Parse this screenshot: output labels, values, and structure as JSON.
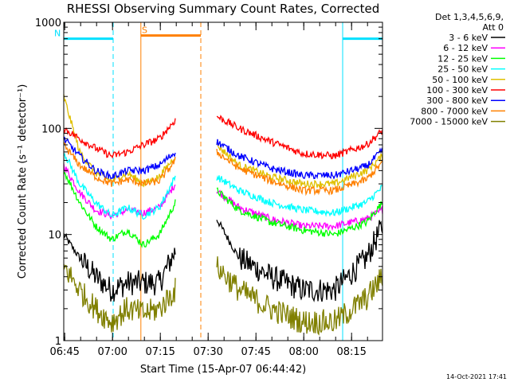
{
  "chart_data": {
    "type": "line",
    "title": "RHESSI Observing Summary Count Rates, Corrected",
    "xlabel": "Start Time (15-Apr-07 06:44:42)",
    "ylabel": "Corrected Count Rate (s⁻¹ detector⁻¹)",
    "yscale": "log",
    "ylim": [
      1,
      1000
    ],
    "xlim_minutes": [
      0,
      100
    ],
    "x_ticks": [
      "06:45",
      "07:00",
      "07:15",
      "07:30",
      "07:45",
      "08:00",
      "08:15"
    ],
    "y_ticks": [
      "1",
      "10",
      "100",
      "1000"
    ],
    "legend_header": [
      "Det 1,3,4,5,6,9,",
      "Att 0"
    ],
    "legend_placement": "right",
    "timestamp": "14-Oct-2021 17:41",
    "data_gap_minutes": [
      18.5,
      22.5
    ],
    "intervals": [
      {
        "label": "N",
        "color": "#00e0ff",
        "start": 0,
        "end": 15.5,
        "level": 700
      },
      {
        "label": "S",
        "color": "#ff8000",
        "start": 24.2,
        "end": 43,
        "level": 750
      },
      {
        "label": "",
        "color": "#00e0ff",
        "start": 87.5,
        "end": 100,
        "level": 700
      }
    ],
    "vlines": [
      {
        "x": 0,
        "color": "#00e0ff",
        "style": "solid"
      },
      {
        "x": 15.5,
        "color": "#00e0ff",
        "style": "dashed"
      },
      {
        "x": 24.2,
        "color": "#ff8000",
        "style": "solid"
      },
      {
        "x": 43,
        "color": "#ff8000",
        "style": "dashed"
      },
      {
        "x": 87.5,
        "color": "#00e0ff",
        "style": "solid"
      },
      {
        "x": 100,
        "color": "#00e0ff",
        "style": "dashed"
      }
    ],
    "x_minutes": [
      0,
      5,
      10,
      15,
      20,
      25,
      30,
      35,
      38,
      48,
      55,
      65,
      75,
      85,
      95,
      100
    ],
    "series": [
      {
        "name": "3 - 6 keV",
        "color": "#000000",
        "values": [
          10,
          6,
          4,
          3,
          3.5,
          3.5,
          3.5,
          7,
          null,
          14,
          6,
          4,
          3,
          3,
          6,
          12
        ]
      },
      {
        "name": "6 - 12 keV",
        "color": "#ff00ff",
        "values": [
          45,
          25,
          17,
          15,
          17,
          16,
          18,
          30,
          null,
          26,
          18,
          14,
          12,
          12,
          14,
          17
        ]
      },
      {
        "name": "12 - 25 keV",
        "color": "#00ff00",
        "values": [
          40,
          20,
          12,
          9,
          11,
          8,
          10,
          20,
          null,
          26,
          17,
          13,
          11,
          10,
          13,
          20
        ]
      },
      {
        "name": "25 - 50 keV",
        "color": "#00ffff",
        "values": [
          60,
          30,
          20,
          15,
          18,
          15,
          18,
          35,
          null,
          35,
          26,
          20,
          17,
          16,
          20,
          28
        ]
      },
      {
        "name": "50 - 100 keV",
        "color": "#e0c000",
        "values": [
          200,
          60,
          38,
          32,
          38,
          30,
          35,
          55,
          null,
          70,
          45,
          35,
          30,
          30,
          40,
          55
        ]
      },
      {
        "name": "100 - 300 keV",
        "color": "#ff0000",
        "values": [
          100,
          80,
          65,
          55,
          60,
          70,
          80,
          120,
          null,
          130,
          100,
          75,
          58,
          55,
          70,
          95
        ]
      },
      {
        "name": "300 - 800 keV",
        "color": "#0000ff",
        "values": [
          80,
          55,
          40,
          35,
          40,
          40,
          45,
          60,
          null,
          75,
          55,
          42,
          36,
          36,
          44,
          62
        ]
      },
      {
        "name": "800 - 7000 keV",
        "color": "#ff8000",
        "values": [
          70,
          45,
          35,
          30,
          33,
          30,
          32,
          50,
          null,
          60,
          42,
          32,
          26,
          26,
          33,
          48
        ]
      },
      {
        "name": "7000 - 15000 keV",
        "color": "#808000",
        "values": [
          5,
          3,
          2,
          1.5,
          2,
          1.8,
          2,
          3,
          null,
          5,
          3,
          2,
          1.5,
          1.5,
          2.5,
          4
        ]
      }
    ]
  }
}
